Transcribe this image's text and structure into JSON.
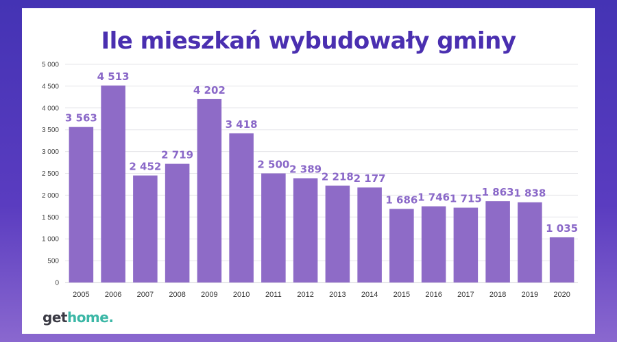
{
  "chart_data": {
    "type": "bar",
    "title": "Ile mieszkań wybudowały gminy",
    "xlabel": "",
    "ylabel": "",
    "ylim": [
      0,
      5000
    ],
    "yticks": [
      0,
      500,
      1000,
      1500,
      2000,
      2500,
      3000,
      3500,
      4000,
      4500,
      5000
    ],
    "ytick_labels": [
      "0",
      "500",
      "1 000",
      "1 500",
      "2 000",
      "2 500",
      "3 000",
      "3 500",
      "4 000",
      "4 500",
      "5 000"
    ],
    "grid": true,
    "categories": [
      "2005",
      "2006",
      "2007",
      "2008",
      "2009",
      "2010",
      "2011",
      "2012",
      "2013",
      "2014",
      "2015",
      "2016",
      "2017",
      "2018",
      "2019",
      "2020"
    ],
    "values": [
      3563,
      4513,
      2452,
      2719,
      4202,
      3418,
      2500,
      2389,
      2218,
      2177,
      1686,
      1746,
      1715,
      1863,
      1838,
      1035
    ],
    "value_labels": [
      "3 563",
      "4 513",
      "2 452",
      "2 719",
      "4 202",
      "3 418",
      "2 500",
      "2 389",
      "2 218",
      "2 177",
      "1 686",
      "1 746",
      "1 715",
      "1 863",
      "1 838",
      "1 035"
    ],
    "bar_color": "#8e6bc7",
    "label_color": "#8a68c8",
    "title_color": "#4a2fb0"
  },
  "logo": {
    "part1": "get",
    "part2": "home."
  },
  "colors": {
    "frame": "#4433b4",
    "logo_dark": "#3a3a44",
    "logo_accent": "#3bb7a6"
  }
}
